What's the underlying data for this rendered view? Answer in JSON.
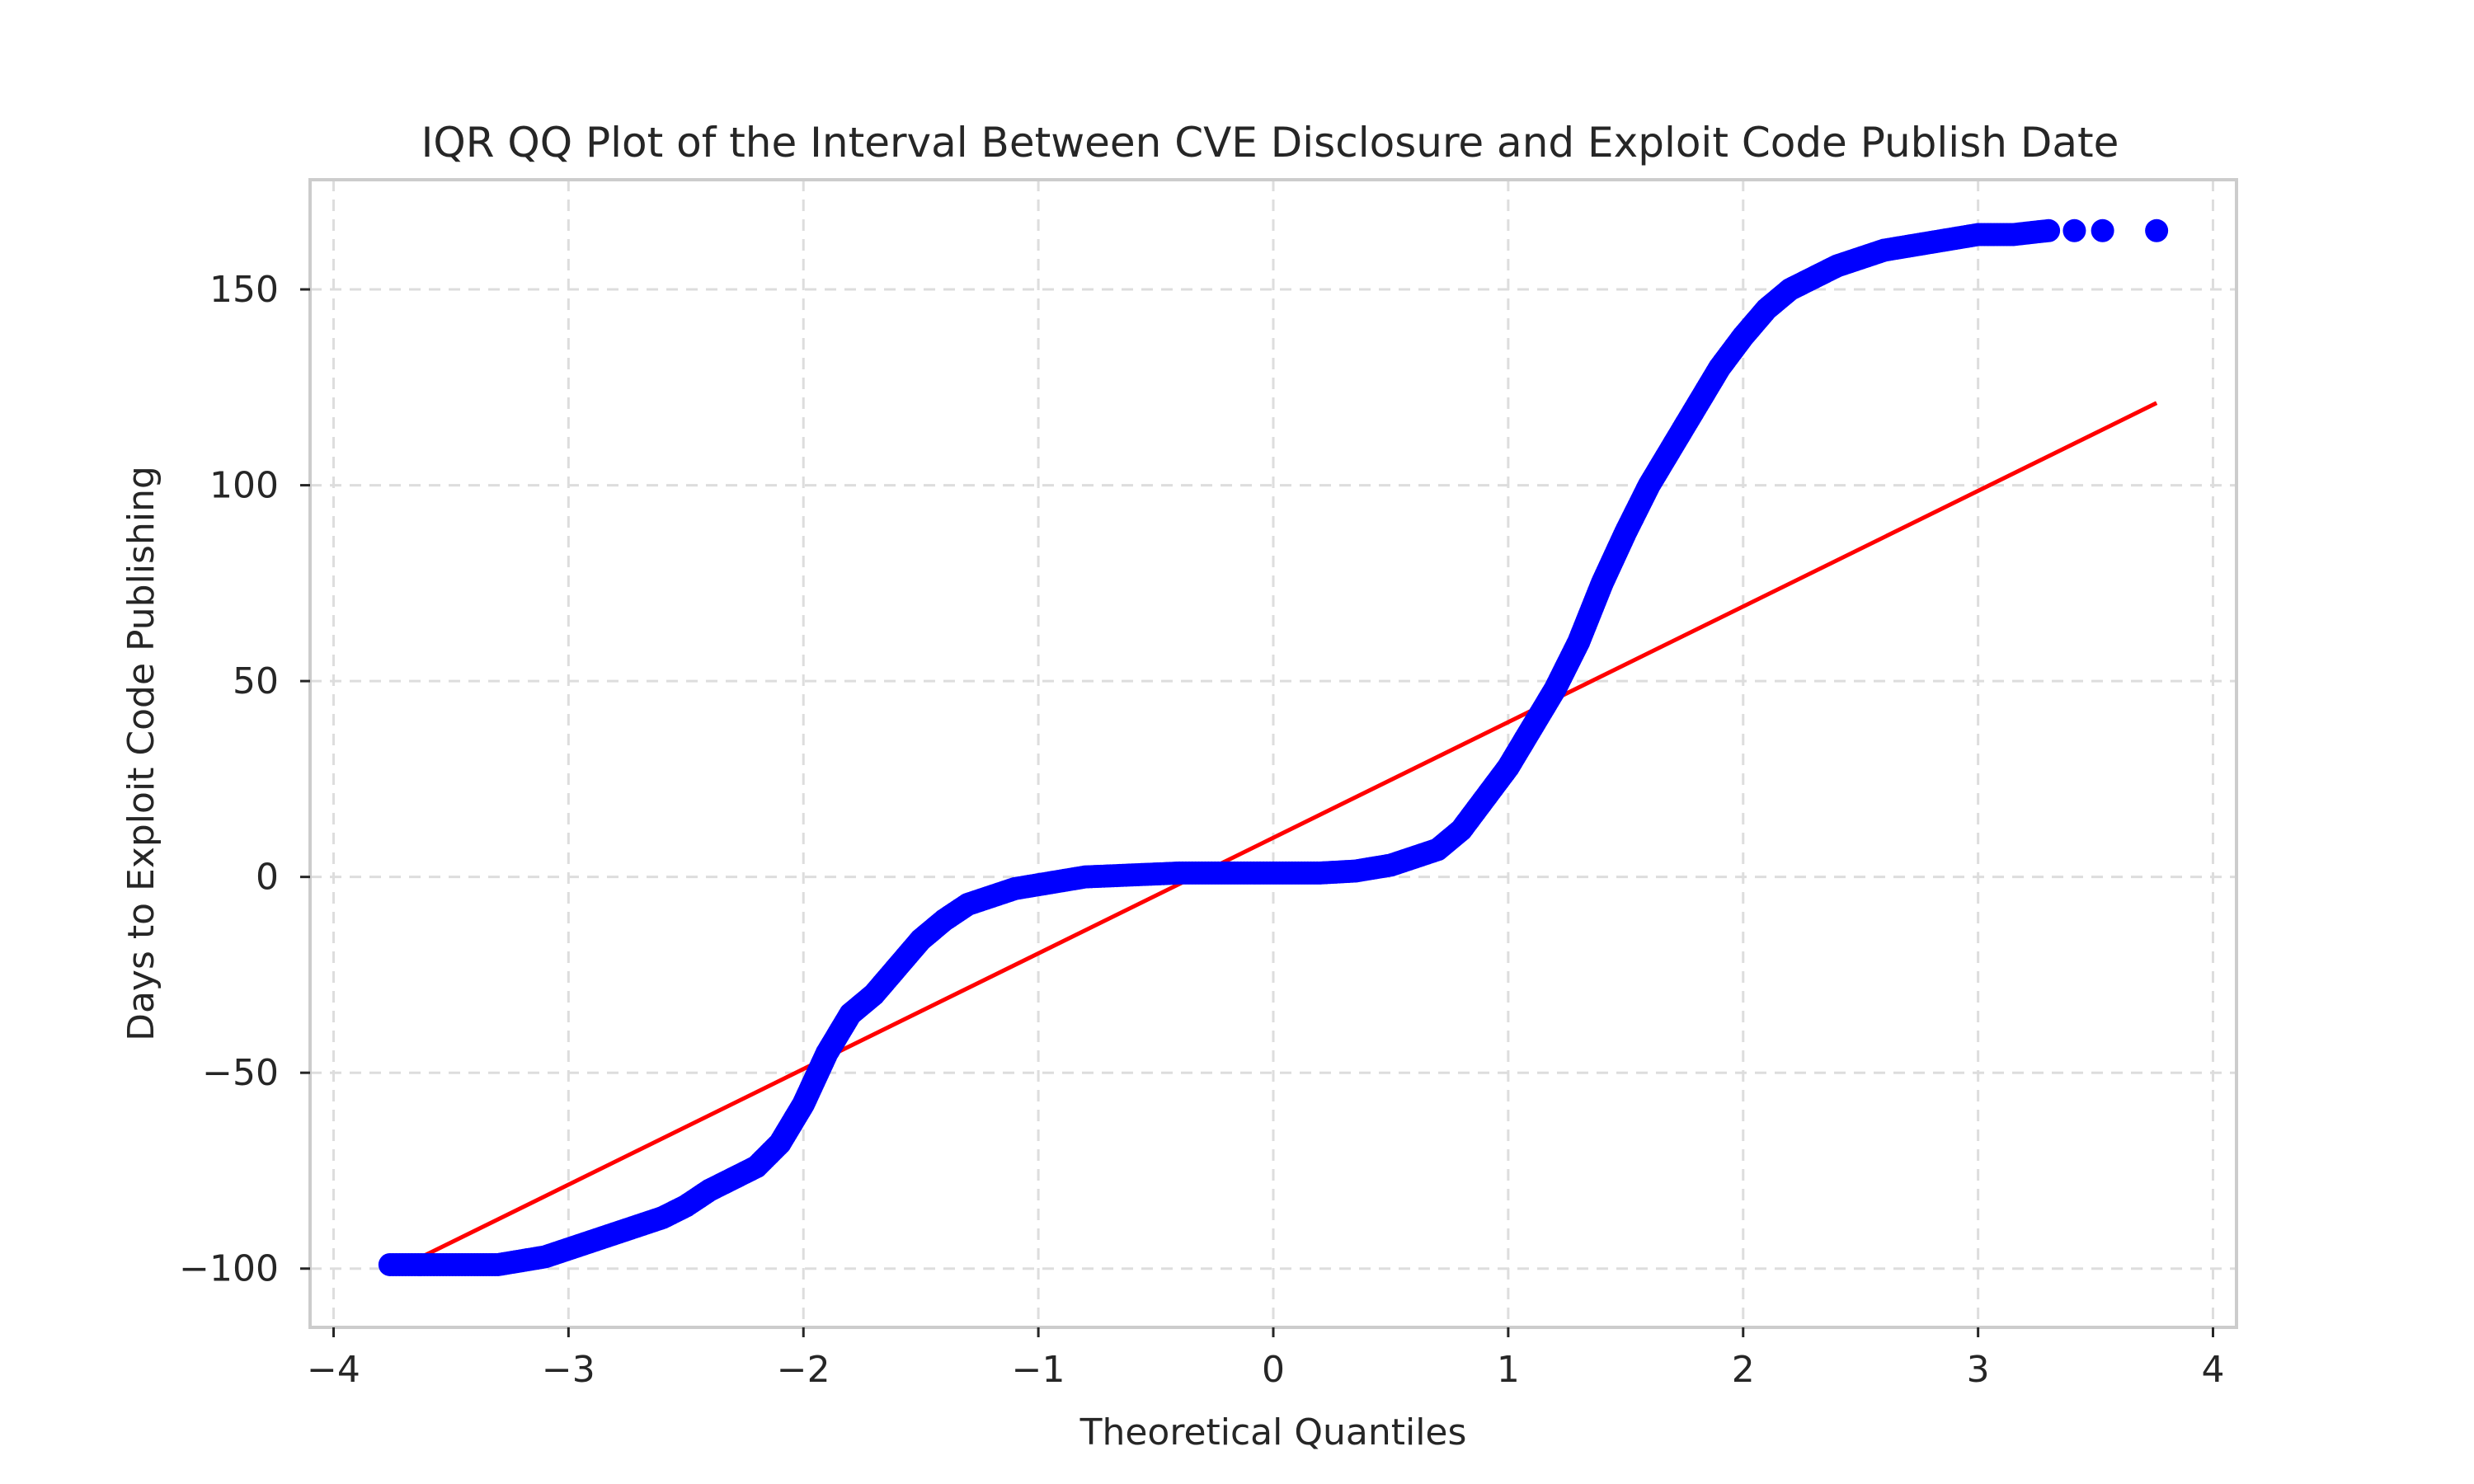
{
  "chart_data": {
    "type": "scatter",
    "title": "IQR QQ Plot of the Interval Between CVE Disclosure and Exploit Code Publish Date",
    "xlabel": "Theoretical Quantiles",
    "ylabel": "Days to Exploit Code Publishing",
    "xlim": [
      -4.1,
      4.1
    ],
    "ylim": [
      -115,
      178
    ],
    "x_ticks": [
      -4,
      -3,
      -2,
      -1,
      0,
      1,
      2,
      3,
      4
    ],
    "x_tick_labels": [
      "−4",
      "−3",
      "−2",
      "−1",
      "0",
      "1",
      "2",
      "3",
      "4"
    ],
    "y_ticks": [
      -100,
      -50,
      0,
      50,
      100,
      150
    ],
    "y_tick_labels": [
      "−100",
      "−50",
      "0",
      "50",
      "100",
      "150"
    ],
    "grid": true,
    "colors": {
      "points": "#0000ff",
      "fit_line": "#ff0000"
    },
    "series": [
      {
        "kind": "points",
        "curve": [
          [
            -3.76,
            -99
          ],
          [
            -3.52,
            -99
          ],
          [
            -3.4,
            -99
          ],
          [
            -3.3,
            -99
          ],
          [
            -3.2,
            -98
          ],
          [
            -3.1,
            -97
          ],
          [
            -3.0,
            -95
          ],
          [
            -2.9,
            -93
          ],
          [
            -2.8,
            -91
          ],
          [
            -2.7,
            -89
          ],
          [
            -2.6,
            -87
          ],
          [
            -2.5,
            -84
          ],
          [
            -2.4,
            -80
          ],
          [
            -2.3,
            -77
          ],
          [
            -2.2,
            -74
          ],
          [
            -2.1,
            -68
          ],
          [
            -2.0,
            -58
          ],
          [
            -1.9,
            -45
          ],
          [
            -1.8,
            -35
          ],
          [
            -1.7,
            -30
          ],
          [
            -1.6,
            -23
          ],
          [
            -1.5,
            -16
          ],
          [
            -1.4,
            -11
          ],
          [
            -1.3,
            -7
          ],
          [
            -1.2,
            -5
          ],
          [
            -1.1,
            -3
          ],
          [
            -1.0,
            -2
          ],
          [
            -0.9,
            -1
          ],
          [
            -0.8,
            0
          ],
          [
            -0.6,
            0.5
          ],
          [
            -0.4,
            1
          ],
          [
            0.0,
            1
          ],
          [
            0.2,
            1
          ],
          [
            0.35,
            1.5
          ],
          [
            0.5,
            3
          ],
          [
            0.6,
            5
          ],
          [
            0.7,
            7
          ],
          [
            0.8,
            12
          ],
          [
            0.9,
            20
          ],
          [
            1.0,
            28
          ],
          [
            1.1,
            38
          ],
          [
            1.2,
            48
          ],
          [
            1.3,
            60
          ],
          [
            1.4,
            75
          ],
          [
            1.5,
            88
          ],
          [
            1.6,
            100
          ],
          [
            1.7,
            110
          ],
          [
            1.8,
            120
          ],
          [
            1.9,
            130
          ],
          [
            2.0,
            138
          ],
          [
            2.1,
            145
          ],
          [
            2.2,
            150
          ],
          [
            2.3,
            153
          ],
          [
            2.4,
            156
          ],
          [
            2.5,
            158
          ],
          [
            2.6,
            160
          ],
          [
            2.7,
            161
          ],
          [
            2.8,
            162
          ],
          [
            2.9,
            163
          ],
          [
            3.0,
            164
          ],
          [
            3.15,
            164
          ],
          [
            3.3,
            165
          ]
        ],
        "outliers": [
          [
            3.41,
            165
          ],
          [
            3.53,
            165
          ],
          [
            3.76,
            165
          ]
        ]
      },
      {
        "kind": "fit_line",
        "x": [
          -3.76,
          3.76
        ],
        "y": [
          -101,
          121
        ]
      }
    ]
  }
}
